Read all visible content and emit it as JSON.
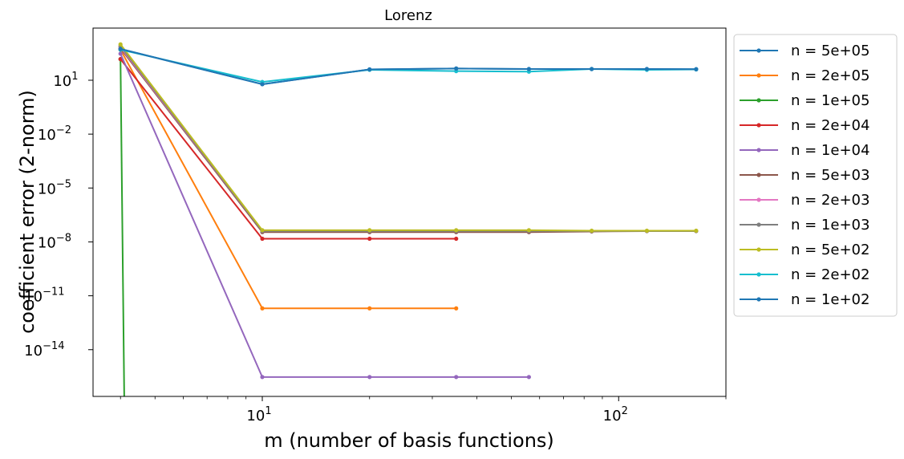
{
  "chart_data": {
    "type": "line",
    "title": "Lorenz",
    "xlabel": "m (number of basis functions)",
    "ylabel": "coefficient error (2-norm)",
    "xscale": "log",
    "yscale": "log",
    "xlim": [
      3.35,
      200
    ],
    "ylim": [
      2.5e-17,
      8000
    ],
    "x_ticks": [
      {
        "value": 10,
        "base": "10",
        "exp": "1"
      },
      {
        "value": 100,
        "base": "10",
        "exp": "2"
      }
    ],
    "y_ticks": [
      {
        "value": 10,
        "base": "10",
        "exp": "1"
      },
      {
        "value": 0.01,
        "base": "10",
        "exp": "−2"
      },
      {
        "value": 1e-05,
        "base": "10",
        "exp": "−5"
      },
      {
        "value": 1e-08,
        "base": "10",
        "exp": "−8"
      },
      {
        "value": 1e-11,
        "base": "10",
        "exp": "−11"
      },
      {
        "value": 1e-14,
        "base": "10",
        "exp": "−14"
      }
    ],
    "grid": false,
    "legend_position": "outside-right",
    "series": [
      {
        "name": "n = 5e+05",
        "color": "#1f77b4",
        "x": [
          4,
          10,
          20,
          35,
          56,
          84,
          120,
          165
        ],
        "y": [
          550,
          6,
          40,
          45,
          42,
          42,
          42,
          41
        ]
      },
      {
        "name": "n = 2e+05",
        "color": "#ff7f0e",
        "x": [
          4,
          10,
          20,
          35
        ],
        "y": [
          500,
          2e-12,
          2e-12,
          2e-12
        ]
      },
      {
        "name": "n = 1e+05",
        "color": "#2ca02c",
        "x": [
          4,
          4.1
        ],
        "y": [
          150,
          1e-17
        ]
      },
      {
        "name": "n = 2e+04",
        "color": "#d62728",
        "x": [
          4,
          10,
          20,
          35
        ],
        "y": [
          150,
          1.5e-08,
          1.5e-08,
          1.5e-08
        ]
      },
      {
        "name": "n = 1e+04",
        "color": "#9467bd",
        "x": [
          4,
          10,
          20,
          35,
          56
        ],
        "y": [
          300,
          3e-16,
          3e-16,
          3e-16,
          3e-16
        ]
      },
      {
        "name": "n = 5e+03",
        "color": "#8c564b",
        "x": [
          4,
          10,
          20,
          35,
          56,
          84,
          120,
          165
        ],
        "y": [
          600,
          3.5e-08,
          3.5e-08,
          3.5e-08,
          3.5e-08,
          3.8e-08,
          4e-08,
          4e-08
        ]
      },
      {
        "name": "n = 2e+03",
        "color": "#e377c2",
        "x": [
          4,
          10,
          20,
          35,
          56,
          84,
          120,
          165
        ],
        "y": [
          700,
          4e-08,
          4e-08,
          4e-08,
          4e-08,
          4e-08,
          4e-08,
          4e-08
        ]
      },
      {
        "name": "n = 1e+03",
        "color": "#7f7f7f",
        "x": [
          4,
          10,
          20,
          35,
          56,
          84,
          120,
          165
        ],
        "y": [
          800,
          4e-08,
          4e-08,
          4e-08,
          4e-08,
          4e-08,
          4e-08,
          4e-08
        ]
      },
      {
        "name": "n = 5e+02",
        "color": "#bcbd22",
        "x": [
          4,
          10,
          20,
          35,
          56,
          84,
          120,
          165
        ],
        "y": [
          1000,
          4.5e-08,
          4.5e-08,
          4.5e-08,
          4.5e-08,
          4.2e-08,
          4.2e-08,
          4.2e-08
        ]
      },
      {
        "name": "n = 2e+02",
        "color": "#17becf",
        "x": [
          4,
          10,
          20,
          35,
          56,
          84,
          120,
          165
        ],
        "y": [
          500,
          8,
          38,
          32,
          30,
          42,
          38,
          40
        ]
      },
      {
        "name": "n = 1e+02",
        "color": "#1f77b4",
        "x": [
          4,
          10,
          20,
          35,
          56,
          84,
          120,
          165
        ],
        "y": [
          550,
          6,
          40,
          45,
          42,
          42,
          42,
          41
        ]
      }
    ]
  }
}
